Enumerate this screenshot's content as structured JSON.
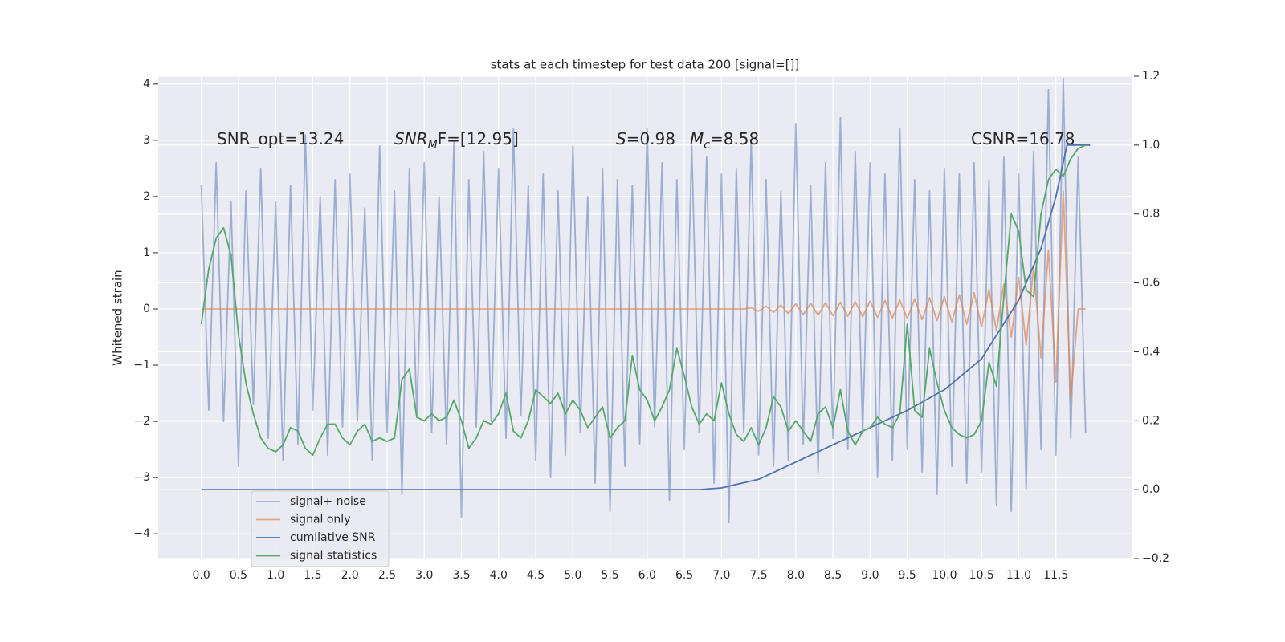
{
  "chart_data": {
    "type": "line",
    "title": "stats at each timestep for test data 200 [signal=[]]",
    "y_label": "Whitened strain",
    "annotations": [
      {
        "text": "SNR_opt=13.24"
      },
      {
        "base": "SNR",
        "sub": "M",
        "rest": "F=[12.95]"
      },
      {
        "base": "S",
        "rest": "=0.98"
      },
      {
        "base": "M",
        "sub": "c",
        "rest": "=8.58"
      },
      {
        "text": "CSNR=16.78"
      }
    ],
    "x": [
      0,
      0.1,
      0.2,
      0.3,
      0.4,
      0.5,
      0.6,
      0.7,
      0.8,
      0.9,
      1,
      1.1,
      1.2,
      1.3,
      1.4,
      1.5,
      1.6,
      1.7,
      1.8,
      1.9,
      2,
      2.1,
      2.2,
      2.3,
      2.4,
      2.5,
      2.6,
      2.7,
      2.8,
      2.9,
      3,
      3.1,
      3.2,
      3.3,
      3.4,
      3.5,
      3.6,
      3.7,
      3.8,
      3.9,
      4,
      4.1,
      4.2,
      4.3,
      4.4,
      4.5,
      4.6,
      4.7,
      4.8,
      4.9,
      5,
      5.1,
      5.2,
      5.3,
      5.4,
      5.5,
      5.6,
      5.7,
      5.8,
      5.9,
      6,
      6.1,
      6.2,
      6.3,
      6.4,
      6.5,
      6.6,
      6.7,
      6.8,
      6.9,
      7,
      7.1,
      7.2,
      7.3,
      7.4,
      7.5,
      7.6,
      7.7,
      7.8,
      7.9,
      8,
      8.1,
      8.2,
      8.3,
      8.4,
      8.5,
      8.6,
      8.7,
      8.8,
      8.9,
      9,
      9.1,
      9.2,
      9.3,
      9.4,
      9.5,
      9.6,
      9.7,
      9.8,
      9.9,
      10,
      10.1,
      10.2,
      10.3,
      10.4,
      10.5,
      10.6,
      10.7,
      10.8,
      10.9,
      11,
      11.1,
      11.2,
      11.3,
      11.4,
      11.5,
      11.6,
      11.7,
      11.8,
      11.9
    ],
    "series": [
      {
        "name": "signal+ noise",
        "color": "#4c72b0",
        "opacity": 0.5,
        "values": [
          2.2,
          -1.8,
          2.6,
          -2.0,
          1.9,
          -2.8,
          2.1,
          -1.7,
          2.5,
          -2.3,
          1.9,
          -2.7,
          2.2,
          -2.4,
          3.1,
          -1.8,
          2.0,
          -2.6,
          2.3,
          -2.1,
          2.4,
          -2.0,
          1.8,
          -2.7,
          2.9,
          -2.2,
          2.1,
          -3.3,
          2.5,
          -1.9,
          2.6,
          -2.2,
          2.0,
          -2.4,
          3.0,
          -3.7,
          2.3,
          -2.1,
          2.8,
          -2.0,
          2.5,
          -2.3,
          3.2,
          -1.9,
          2.2,
          -2.7,
          2.4,
          -3.0,
          2.1,
          -2.6,
          2.9,
          -2.2,
          2.0,
          -3.1,
          2.5,
          -3.6,
          2.3,
          -2.8,
          2.2,
          -2.4,
          3.2,
          -2.1,
          2.6,
          -3.4,
          2.3,
          -2.5,
          2.9,
          -2.2,
          2.7,
          -3.1,
          2.4,
          -3.8,
          2.5,
          -2.2,
          3.0,
          -2.6,
          2.3,
          -2.8,
          2.1,
          -2.7,
          3.3,
          -2.4,
          2.2,
          -2.9,
          2.6,
          -2.3,
          3.4,
          -2.5,
          2.8,
          -2.2,
          2.6,
          -3.0,
          2.4,
          -2.7,
          3.2,
          -2.5,
          2.3,
          -2.9,
          2.1,
          -3.3,
          2.5,
          -2.8,
          2.4,
          -3.1,
          2.6,
          -2.9,
          2.3,
          -3.5,
          2.7,
          -3.6,
          2.4,
          -3.2,
          2.8,
          -2.5,
          3.9,
          -2.6,
          4.1,
          -2.3,
          2.7,
          -2.2
        ]
      },
      {
        "name": "signal only",
        "color": "#dd8452",
        "opacity": 0.7,
        "values": [
          0,
          0,
          0,
          0,
          0,
          0,
          0,
          0,
          0,
          0,
          0,
          0,
          0,
          0,
          0,
          0,
          0,
          0,
          0,
          0,
          0,
          0,
          0,
          0,
          0,
          0,
          0,
          0,
          0,
          0,
          0,
          0,
          0,
          0,
          0,
          0,
          0,
          0,
          0,
          0,
          0,
          0,
          0,
          0,
          0,
          0,
          0,
          0,
          0,
          0,
          0,
          0,
          0,
          0,
          0,
          0,
          0,
          0,
          0,
          0,
          0,
          0,
          0,
          0,
          0,
          0,
          0,
          0,
          0,
          0,
          0,
          0,
          0,
          0,
          0.02,
          -0.04,
          0.05,
          -0.06,
          0.07,
          -0.08,
          0.09,
          -0.1,
          0.1,
          -0.11,
          0.11,
          -0.12,
          0.12,
          -0.13,
          0.13,
          -0.14,
          0.14,
          -0.15,
          0.15,
          -0.16,
          0.16,
          -0.17,
          0.18,
          -0.19,
          0.2,
          -0.21,
          0.22,
          -0.23,
          0.25,
          -0.27,
          0.29,
          -0.32,
          0.35,
          -0.39,
          0.44,
          -0.5,
          0.56,
          -0.64,
          0.74,
          -0.87,
          1.05,
          -1.3,
          2.1,
          -1.6,
          0,
          0
        ]
      },
      {
        "name": "cumilative SNR",
        "color": "#4c72b0",
        "axis": "y2",
        "x": [
          0,
          6.7,
          7,
          7.5,
          8,
          8.5,
          9,
          9.5,
          10,
          10.5,
          11,
          11.3,
          11.5,
          11.65,
          11.96
        ],
        "values": [
          0,
          0,
          0.005,
          0.03,
          0.08,
          0.13,
          0.18,
          0.23,
          0.29,
          0.38,
          0.55,
          0.7,
          0.85,
          1.0,
          1.0
        ]
      },
      {
        "name": "signal statistics",
        "color": "#55a868",
        "axis": "y2",
        "values": [
          0.48,
          0.64,
          0.73,
          0.76,
          0.68,
          0.45,
          0.31,
          0.22,
          0.15,
          0.12,
          0.11,
          0.13,
          0.18,
          0.17,
          0.12,
          0.1,
          0.15,
          0.19,
          0.19,
          0.15,
          0.13,
          0.17,
          0.19,
          0.14,
          0.15,
          0.14,
          0.15,
          0.32,
          0.35,
          0.21,
          0.2,
          0.22,
          0.2,
          0.21,
          0.26,
          0.2,
          0.12,
          0.15,
          0.2,
          0.19,
          0.22,
          0.28,
          0.17,
          0.15,
          0.2,
          0.29,
          0.27,
          0.25,
          0.28,
          0.22,
          0.26,
          0.23,
          0.18,
          0.21,
          0.24,
          0.15,
          0.18,
          0.2,
          0.39,
          0.29,
          0.26,
          0.2,
          0.24,
          0.29,
          0.41,
          0.33,
          0.24,
          0.19,
          0.22,
          0.2,
          0.31,
          0.22,
          0.16,
          0.14,
          0.18,
          0.13,
          0.18,
          0.27,
          0.24,
          0.17,
          0.2,
          0.17,
          0.14,
          0.22,
          0.24,
          0.18,
          0.29,
          0.17,
          0.13,
          0.17,
          0.18,
          0.21,
          0.19,
          0.18,
          0.22,
          0.48,
          0.23,
          0.21,
          0.41,
          0.31,
          0.23,
          0.18,
          0.16,
          0.15,
          0.16,
          0.2,
          0.37,
          0.3,
          0.56,
          0.8,
          0.75,
          0.58,
          0.56,
          0.8,
          0.9,
          0.93,
          0.91,
          0.96,
          0.99,
          1.0
        ]
      }
    ],
    "xlim": [
      -0.58,
      12.53
    ],
    "xticks": [
      {
        "value": 0,
        "label": "0.0"
      },
      0.5,
      {
        "value": 1,
        "label": "1.0"
      },
      1.5,
      {
        "value": 2,
        "label": "2.0"
      },
      2.5,
      {
        "value": 3,
        "label": "3.0"
      },
      3.5,
      {
        "value": 4,
        "label": "4.0"
      },
      4.5,
      {
        "value": 5,
        "label": "5.0"
      },
      5.5,
      {
        "value": 6,
        "label": "6.0"
      },
      6.5,
      {
        "value": 7,
        "label": "7.0"
      },
      7.5,
      {
        "value": 8,
        "label": "8.0"
      },
      8.5,
      {
        "value": 9,
        "label": "9.0"
      },
      9.5,
      {
        "value": 10,
        "label": "10.0"
      },
      10.5,
      {
        "value": 11,
        "label": "11.0"
      },
      11.5
    ],
    "ylim": [
      -4.44,
      4.14
    ],
    "yticks": [
      {
        "value": -4,
        "label": "−4"
      },
      {
        "value": -3,
        "label": "−3"
      },
      {
        "value": -2,
        "label": "−2"
      },
      {
        "value": -1,
        "label": "−1"
      },
      0,
      1,
      2,
      3,
      4
    ],
    "y2lim": [
      -0.2,
      1.2
    ],
    "y2ticks": [
      {
        "value": -0.2,
        "label": "−0.2"
      },
      {
        "value": 0,
        "label": "0.0"
      },
      0.2,
      0.4,
      0.6,
      0.8,
      {
        "value": 1,
        "label": "1.0"
      },
      1.2
    ],
    "grid": true,
    "legend": "lower left"
  }
}
